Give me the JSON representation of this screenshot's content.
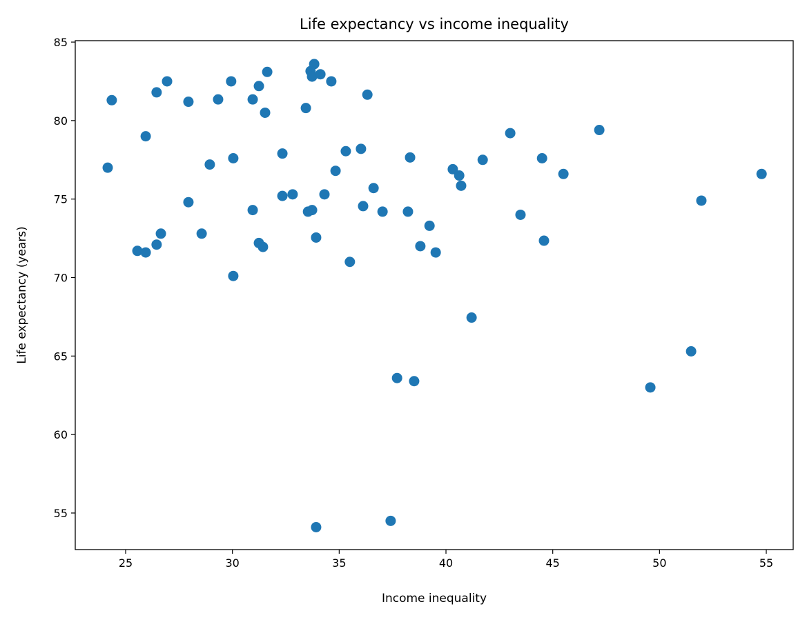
{
  "chart_data": {
    "type": "scatter",
    "title": "Life expectancy vs income inequality",
    "xlabel": "Income inequality",
    "ylabel": "Life expectancy (years)",
    "xlim": [
      22.64,
      56.26
    ],
    "ylim": [
      52.67,
      85.09
    ],
    "xticks": [
      25,
      30,
      35,
      40,
      45,
      50,
      55
    ],
    "yticks": [
      55,
      60,
      65,
      70,
      75,
      80,
      85
    ],
    "grid": false,
    "color": "#1f77b4",
    "points": [
      [
        24.16,
        77.0
      ],
      [
        24.35,
        81.3
      ],
      [
        25.55,
        71.7
      ],
      [
        25.94,
        79.0
      ],
      [
        25.94,
        71.6
      ],
      [
        26.45,
        81.8
      ],
      [
        26.45,
        72.1
      ],
      [
        26.65,
        72.8
      ],
      [
        26.94,
        82.5
      ],
      [
        27.94,
        81.2
      ],
      [
        27.94,
        74.8
      ],
      [
        28.56,
        72.8
      ],
      [
        28.94,
        77.2
      ],
      [
        29.33,
        81.35
      ],
      [
        29.94,
        82.5
      ],
      [
        30.04,
        77.6
      ],
      [
        30.04,
        70.1
      ],
      [
        30.95,
        81.35
      ],
      [
        30.95,
        74.3
      ],
      [
        31.24,
        82.2
      ],
      [
        31.24,
        72.2
      ],
      [
        31.43,
        71.95
      ],
      [
        31.53,
        80.5
      ],
      [
        31.63,
        83.1
      ],
      [
        32.34,
        77.9
      ],
      [
        32.34,
        75.2
      ],
      [
        32.82,
        75.3
      ],
      [
        33.44,
        80.8
      ],
      [
        33.54,
        74.2
      ],
      [
        33.66,
        83.15
      ],
      [
        33.73,
        82.8
      ],
      [
        33.73,
        74.3
      ],
      [
        33.83,
        83.6
      ],
      [
        33.92,
        72.55
      ],
      [
        33.92,
        54.1
      ],
      [
        34.12,
        82.95
      ],
      [
        34.31,
        75.3
      ],
      [
        34.63,
        82.5
      ],
      [
        34.83,
        76.8
      ],
      [
        35.31,
        78.05
      ],
      [
        35.5,
        71.0
      ],
      [
        36.02,
        78.2
      ],
      [
        36.12,
        74.55
      ],
      [
        36.32,
        81.65
      ],
      [
        36.61,
        75.7
      ],
      [
        37.03,
        74.2
      ],
      [
        37.41,
        54.5
      ],
      [
        37.71,
        63.6
      ],
      [
        38.22,
        74.2
      ],
      [
        38.32,
        77.65
      ],
      [
        38.51,
        63.4
      ],
      [
        38.8,
        72.0
      ],
      [
        39.23,
        73.3
      ],
      [
        39.52,
        71.6
      ],
      [
        40.32,
        76.9
      ],
      [
        40.62,
        76.5
      ],
      [
        40.71,
        75.85
      ],
      [
        41.2,
        67.45
      ],
      [
        41.72,
        77.5
      ],
      [
        43.01,
        79.2
      ],
      [
        43.49,
        74.0
      ],
      [
        44.5,
        77.6
      ],
      [
        44.59,
        72.35
      ],
      [
        45.5,
        76.6
      ],
      [
        47.18,
        79.4
      ],
      [
        49.57,
        63.0
      ],
      [
        51.48,
        65.3
      ],
      [
        51.96,
        74.9
      ],
      [
        54.78,
        76.6
      ]
    ]
  }
}
